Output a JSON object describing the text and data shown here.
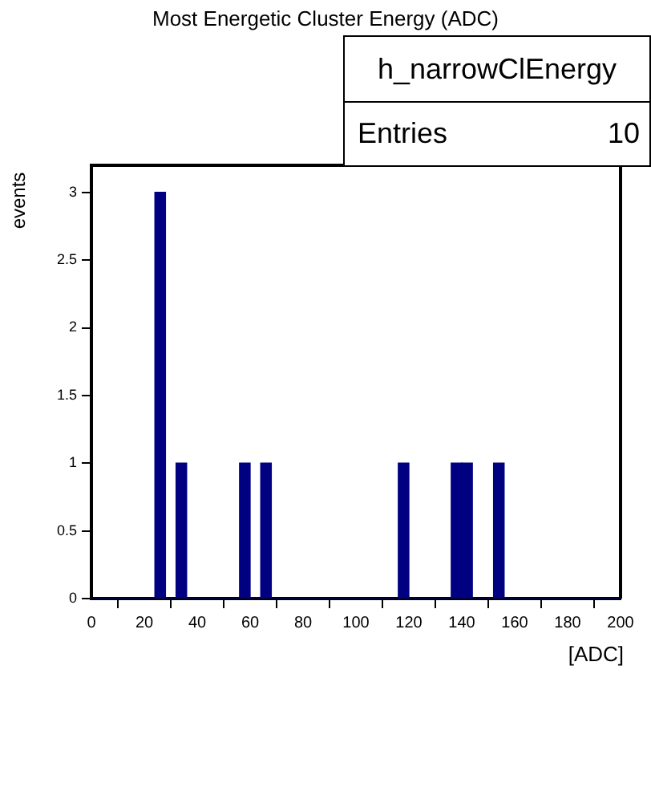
{
  "chart_data": {
    "type": "histogram",
    "title": "Most Energetic Cluster Energy (ADC)",
    "xlabel": "[ADC]",
    "ylabel": "events",
    "annotations": [
      "h_narrowClEnergy",
      "Entries",
      "10"
    ],
    "bins": [
      0,
      4,
      8,
      12,
      16,
      20,
      24,
      28,
      32,
      36,
      40,
      44,
      48,
      52,
      56,
      60,
      64,
      68,
      72,
      76,
      80,
      84,
      88,
      92,
      96,
      100,
      104,
      108,
      112,
      116,
      120,
      124,
      128,
      132,
      136,
      140,
      144,
      148,
      152,
      156,
      160,
      164,
      168,
      172,
      176,
      180,
      184,
      188,
      192,
      196,
      200
    ],
    "values": [
      0,
      0,
      0,
      0,
      0,
      0,
      3,
      0,
      1,
      0,
      0,
      0,
      0,
      0,
      1,
      0,
      1,
      0,
      0,
      0,
      0,
      0,
      0,
      0,
      0,
      0,
      0,
      0,
      0,
      1,
      0,
      0,
      0,
      0,
      1,
      1,
      0,
      0,
      1,
      0,
      0,
      0,
      0,
      0,
      0,
      0,
      0,
      0,
      0,
      0
    ],
    "color": "#000080",
    "xlim": [
      0,
      200
    ],
    "ylim": [
      0,
      3.2
    ],
    "xticks": [
      0,
      20,
      40,
      60,
      80,
      100,
      120,
      140,
      160,
      180,
      200
    ],
    "yticks": [
      0,
      0.5,
      1,
      1.5,
      2,
      2.5,
      3
    ],
    "grid": false,
    "legend": false
  }
}
